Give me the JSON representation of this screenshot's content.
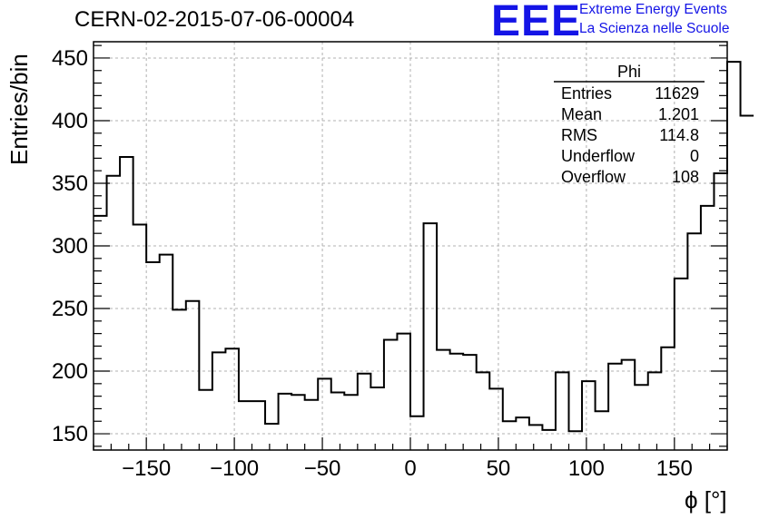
{
  "header": {
    "title": "CERN-02-2015-07-06-00004",
    "logo": "EEE",
    "logo_line1": "Extreme Energy Events",
    "logo_line2": "La Scienza nelle Scuole"
  },
  "stats": {
    "title": "Phi",
    "rows": [
      {
        "label": "Entries",
        "value": "11629"
      },
      {
        "label": "Mean",
        "value": "1.201"
      },
      {
        "label": "RMS",
        "value": "114.8"
      },
      {
        "label": "Underflow",
        "value": "0"
      },
      {
        "label": "Overflow",
        "value": "108"
      }
    ]
  },
  "chart_data": {
    "type": "bar",
    "style": "step-histogram",
    "title": "CERN-02-2015-07-06-00004",
    "xlabel": "ϕ [°]",
    "ylabel": "Entries/bin",
    "xlim": [
      -180,
      180
    ],
    "ylim": [
      137,
      463
    ],
    "grid": true,
    "bin_width": 7.5,
    "x_ticks": [
      -150,
      -100,
      -50,
      0,
      50,
      100,
      150
    ],
    "x_tick_labels": [
      "−150",
      "−100",
      "−50",
      "0",
      "50",
      "100",
      "150"
    ],
    "y_ticks": [
      150,
      200,
      250,
      300,
      350,
      400,
      450
    ],
    "y_tick_labels": [
      "150",
      "200",
      "250",
      "300",
      "350",
      "400",
      "450"
    ],
    "bin_edges_start": -180,
    "values": [
      324,
      356,
      371,
      317,
      287,
      293,
      249,
      256,
      185,
      215,
      218,
      176,
      176,
      158,
      182,
      181,
      177,
      194,
      183,
      181,
      198,
      187,
      225,
      230,
      164,
      318,
      217,
      214,
      213,
      199,
      186,
      160,
      163,
      157,
      153,
      199,
      152,
      192,
      168,
      206,
      209,
      189,
      199,
      219,
      274,
      310,
      332,
      358,
      447,
      404
    ]
  }
}
